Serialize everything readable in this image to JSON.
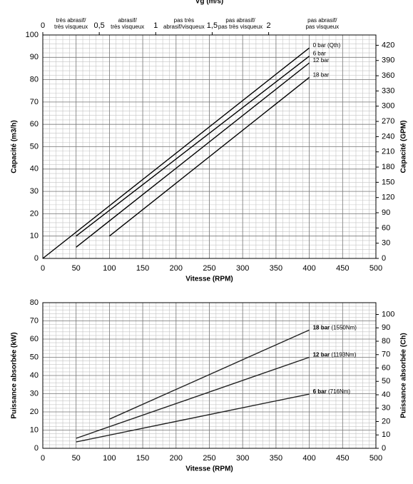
{
  "chart_data": [
    {
      "type": "line",
      "xlabel": "Vitesse (RPM)",
      "ylabel": "Capacité (m3/h)",
      "y2label": "Capacité (GPM)",
      "xlim": [
        0,
        500
      ],
      "xticks": [
        0,
        50,
        100,
        150,
        200,
        250,
        300,
        350,
        400,
        450,
        500
      ],
      "ylim": [
        0,
        100
      ],
      "yticks": [
        0,
        10,
        20,
        30,
        40,
        50,
        60,
        70,
        80,
        90,
        100
      ],
      "y2lim": [
        0,
        440.3
      ],
      "y2ticks": [
        0,
        30,
        60,
        90,
        120,
        150,
        180,
        210,
        240,
        270,
        300,
        330,
        360,
        390,
        420
      ],
      "x2label": "Vg (m/s)",
      "x2lim": [
        0,
        2.95
      ],
      "x2ticks": [
        0,
        {
          "value": 0.5,
          "label": "0,5"
        },
        1,
        {
          "value": 1.5,
          "label": "1,5"
        },
        2
      ],
      "x2_zones": [
        [
          "très abrasif/",
          "très visqueux"
        ],
        [
          "abrasif/",
          "très visqueux"
        ],
        [
          "pas très",
          "abrasif/visqueux"
        ],
        [
          "pas abrasif/",
          "pas très visqueux"
        ],
        [
          "pas abrasif/",
          "pas visqueux"
        ]
      ],
      "grid": true,
      "minor_grid": {
        "x": 10,
        "y": 2
      },
      "series": [
        {
          "name": "0 bar (Qth)",
          "color": "#000000",
          "x": [
            0,
            400
          ],
          "values": [
            0,
            94.2
          ]
        },
        {
          "name": "6 bar",
          "color": "#000000",
          "x": [
            50,
            400
          ],
          "values": [
            10,
            90.5
          ]
        },
        {
          "name": "12 bar",
          "color": "#000000",
          "x": [
            50,
            400
          ],
          "values": [
            5,
            87.5
          ]
        },
        {
          "name": "18 bar",
          "color": "#000000",
          "x": [
            100,
            400
          ],
          "values": [
            10,
            81
          ]
        }
      ]
    },
    {
      "type": "line",
      "xlabel": "Vitesse (RPM)",
      "ylabel": "Puissance absorbée (kW)",
      "y2label": "Puissance absorbée (Ch)",
      "xlim": [
        0,
        500
      ],
      "xticks": [
        0,
        50,
        100,
        150,
        200,
        250,
        300,
        350,
        400,
        450,
        500
      ],
      "ylim": [
        0,
        80
      ],
      "yticks": [
        0,
        10,
        20,
        30,
        40,
        50,
        60,
        70,
        80
      ],
      "y2lim": [
        0,
        108.8
      ],
      "y2ticks": [
        0,
        10,
        20,
        30,
        40,
        50,
        60,
        70,
        80,
        90,
        100
      ],
      "grid": true,
      "minor_grid": {
        "x": 10,
        "y": 2
      },
      "series": [
        {
          "name": "18 bar",
          "torque": "(1550Nm)",
          "color": "#222222",
          "x": [
            100,
            400
          ],
          "values": [
            16,
            65
          ]
        },
        {
          "name": "12 bar",
          "torque": "(1193Nm)",
          "color": "#222222",
          "x": [
            50,
            400
          ],
          "values": [
            5.5,
            50
          ]
        },
        {
          "name": "6 bar",
          "torque": "(716Nm)",
          "color": "#222222",
          "x": [
            50,
            400
          ],
          "values": [
            3.5,
            29.8
          ]
        }
      ]
    }
  ]
}
